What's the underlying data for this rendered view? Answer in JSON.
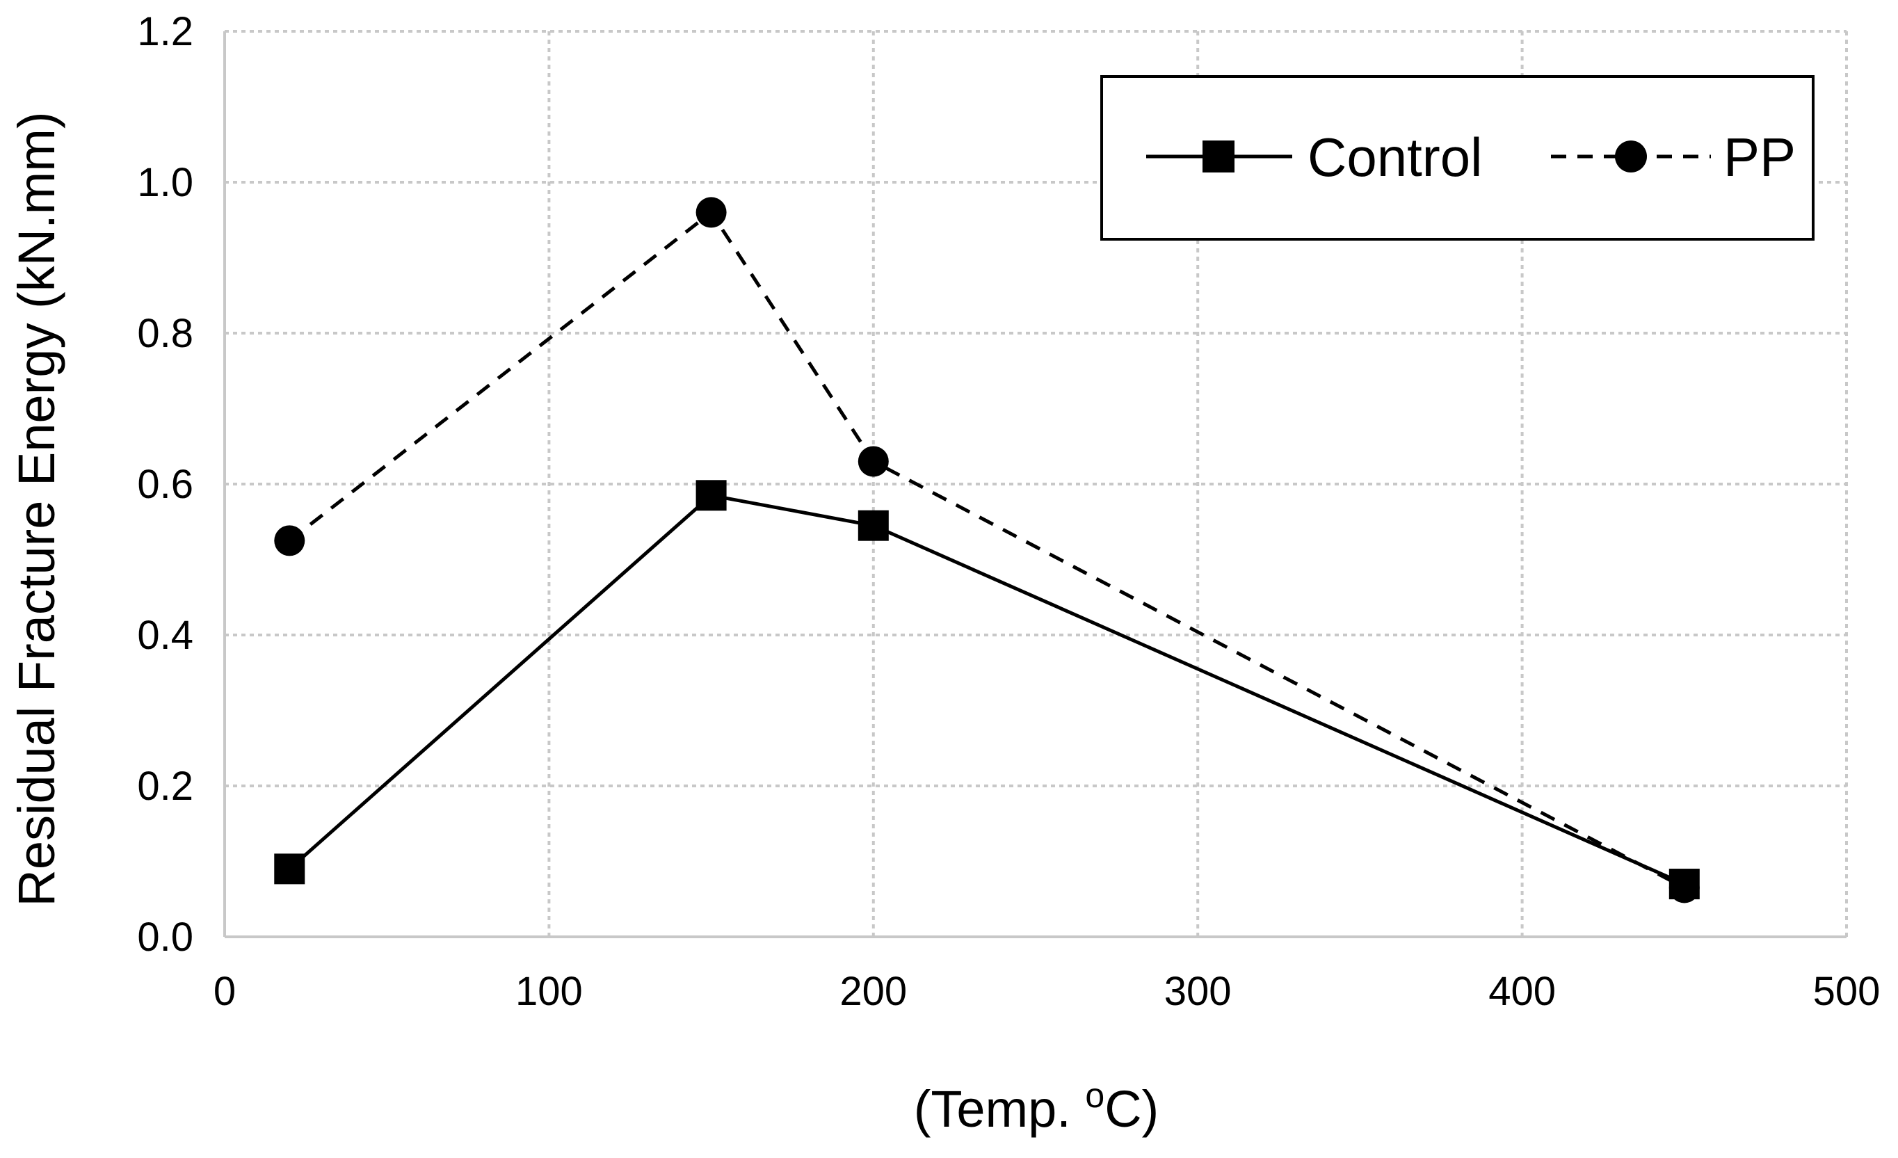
{
  "chart_data": {
    "type": "line",
    "title": "",
    "xlabel": "(Temp. ",
    "xlabel_sup": "o",
    "xlabel_suffix": "C)",
    "ylabel": "Residual Fracture Energy (kN.mm)",
    "xlim": [
      0,
      500
    ],
    "ylim": [
      0,
      1.2
    ],
    "x_ticks": [
      "0",
      "100",
      "200",
      "300",
      "400",
      "500"
    ],
    "x_tick_values": [
      0,
      100,
      200,
      300,
      400,
      500
    ],
    "y_ticks": [
      "0.0",
      "0.2",
      "0.4",
      "0.6",
      "0.8",
      "1.0",
      "1.2"
    ],
    "y_tick_values": [
      0,
      0.2,
      0.4,
      0.6,
      0.8,
      1.0,
      1.2
    ],
    "grid": true,
    "legend_position": "top-right",
    "series": [
      {
        "name": "Control",
        "line_style": "solid",
        "marker": "square",
        "color": "#000000",
        "x": [
          20,
          150,
          200,
          450
        ],
        "y": [
          0.09,
          0.585,
          0.545,
          0.07
        ]
      },
      {
        "name": "PP",
        "line_style": "dashed",
        "marker": "circle",
        "color": "#000000",
        "x": [
          20,
          150,
          200,
          450
        ],
        "y": [
          0.525,
          0.96,
          0.63,
          0.065
        ]
      }
    ]
  }
}
